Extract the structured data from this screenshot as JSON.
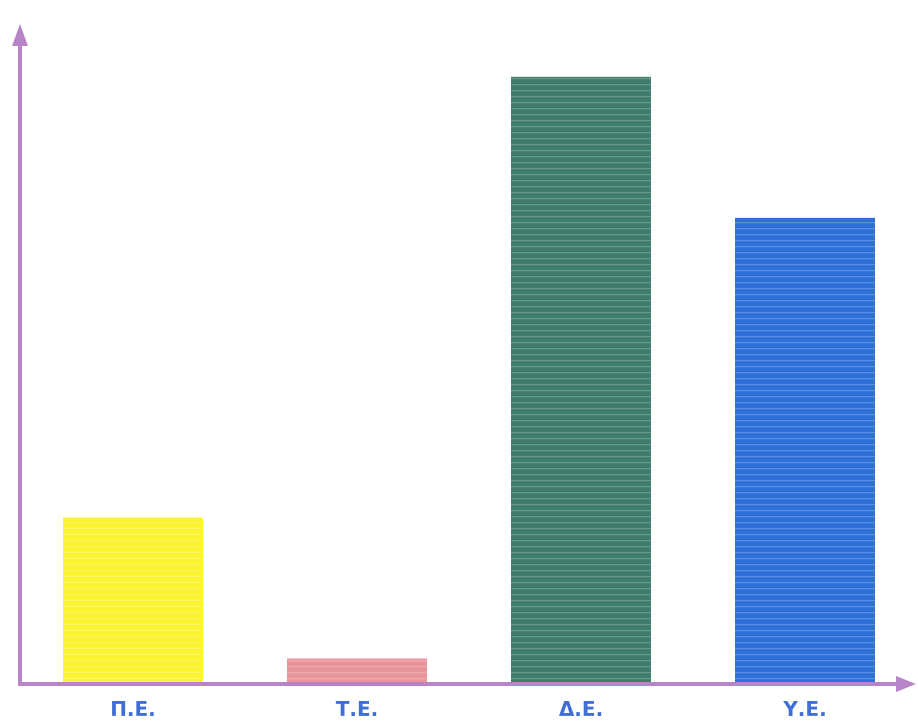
{
  "chart_data": {
    "type": "bar",
    "categories": [
      "Π.Ε.",
      "Τ.Ε.",
      "Δ.Ε.",
      "Υ.Ε."
    ],
    "values": [
      28,
      4,
      103,
      79
    ],
    "colors": [
      "#fbf230",
      "#e8949b",
      "#3f7c6d",
      "#2f6fd8"
    ],
    "ylim": [
      0,
      112
    ],
    "axis_color": "#b784c8",
    "grid": false,
    "legend": "none"
  }
}
